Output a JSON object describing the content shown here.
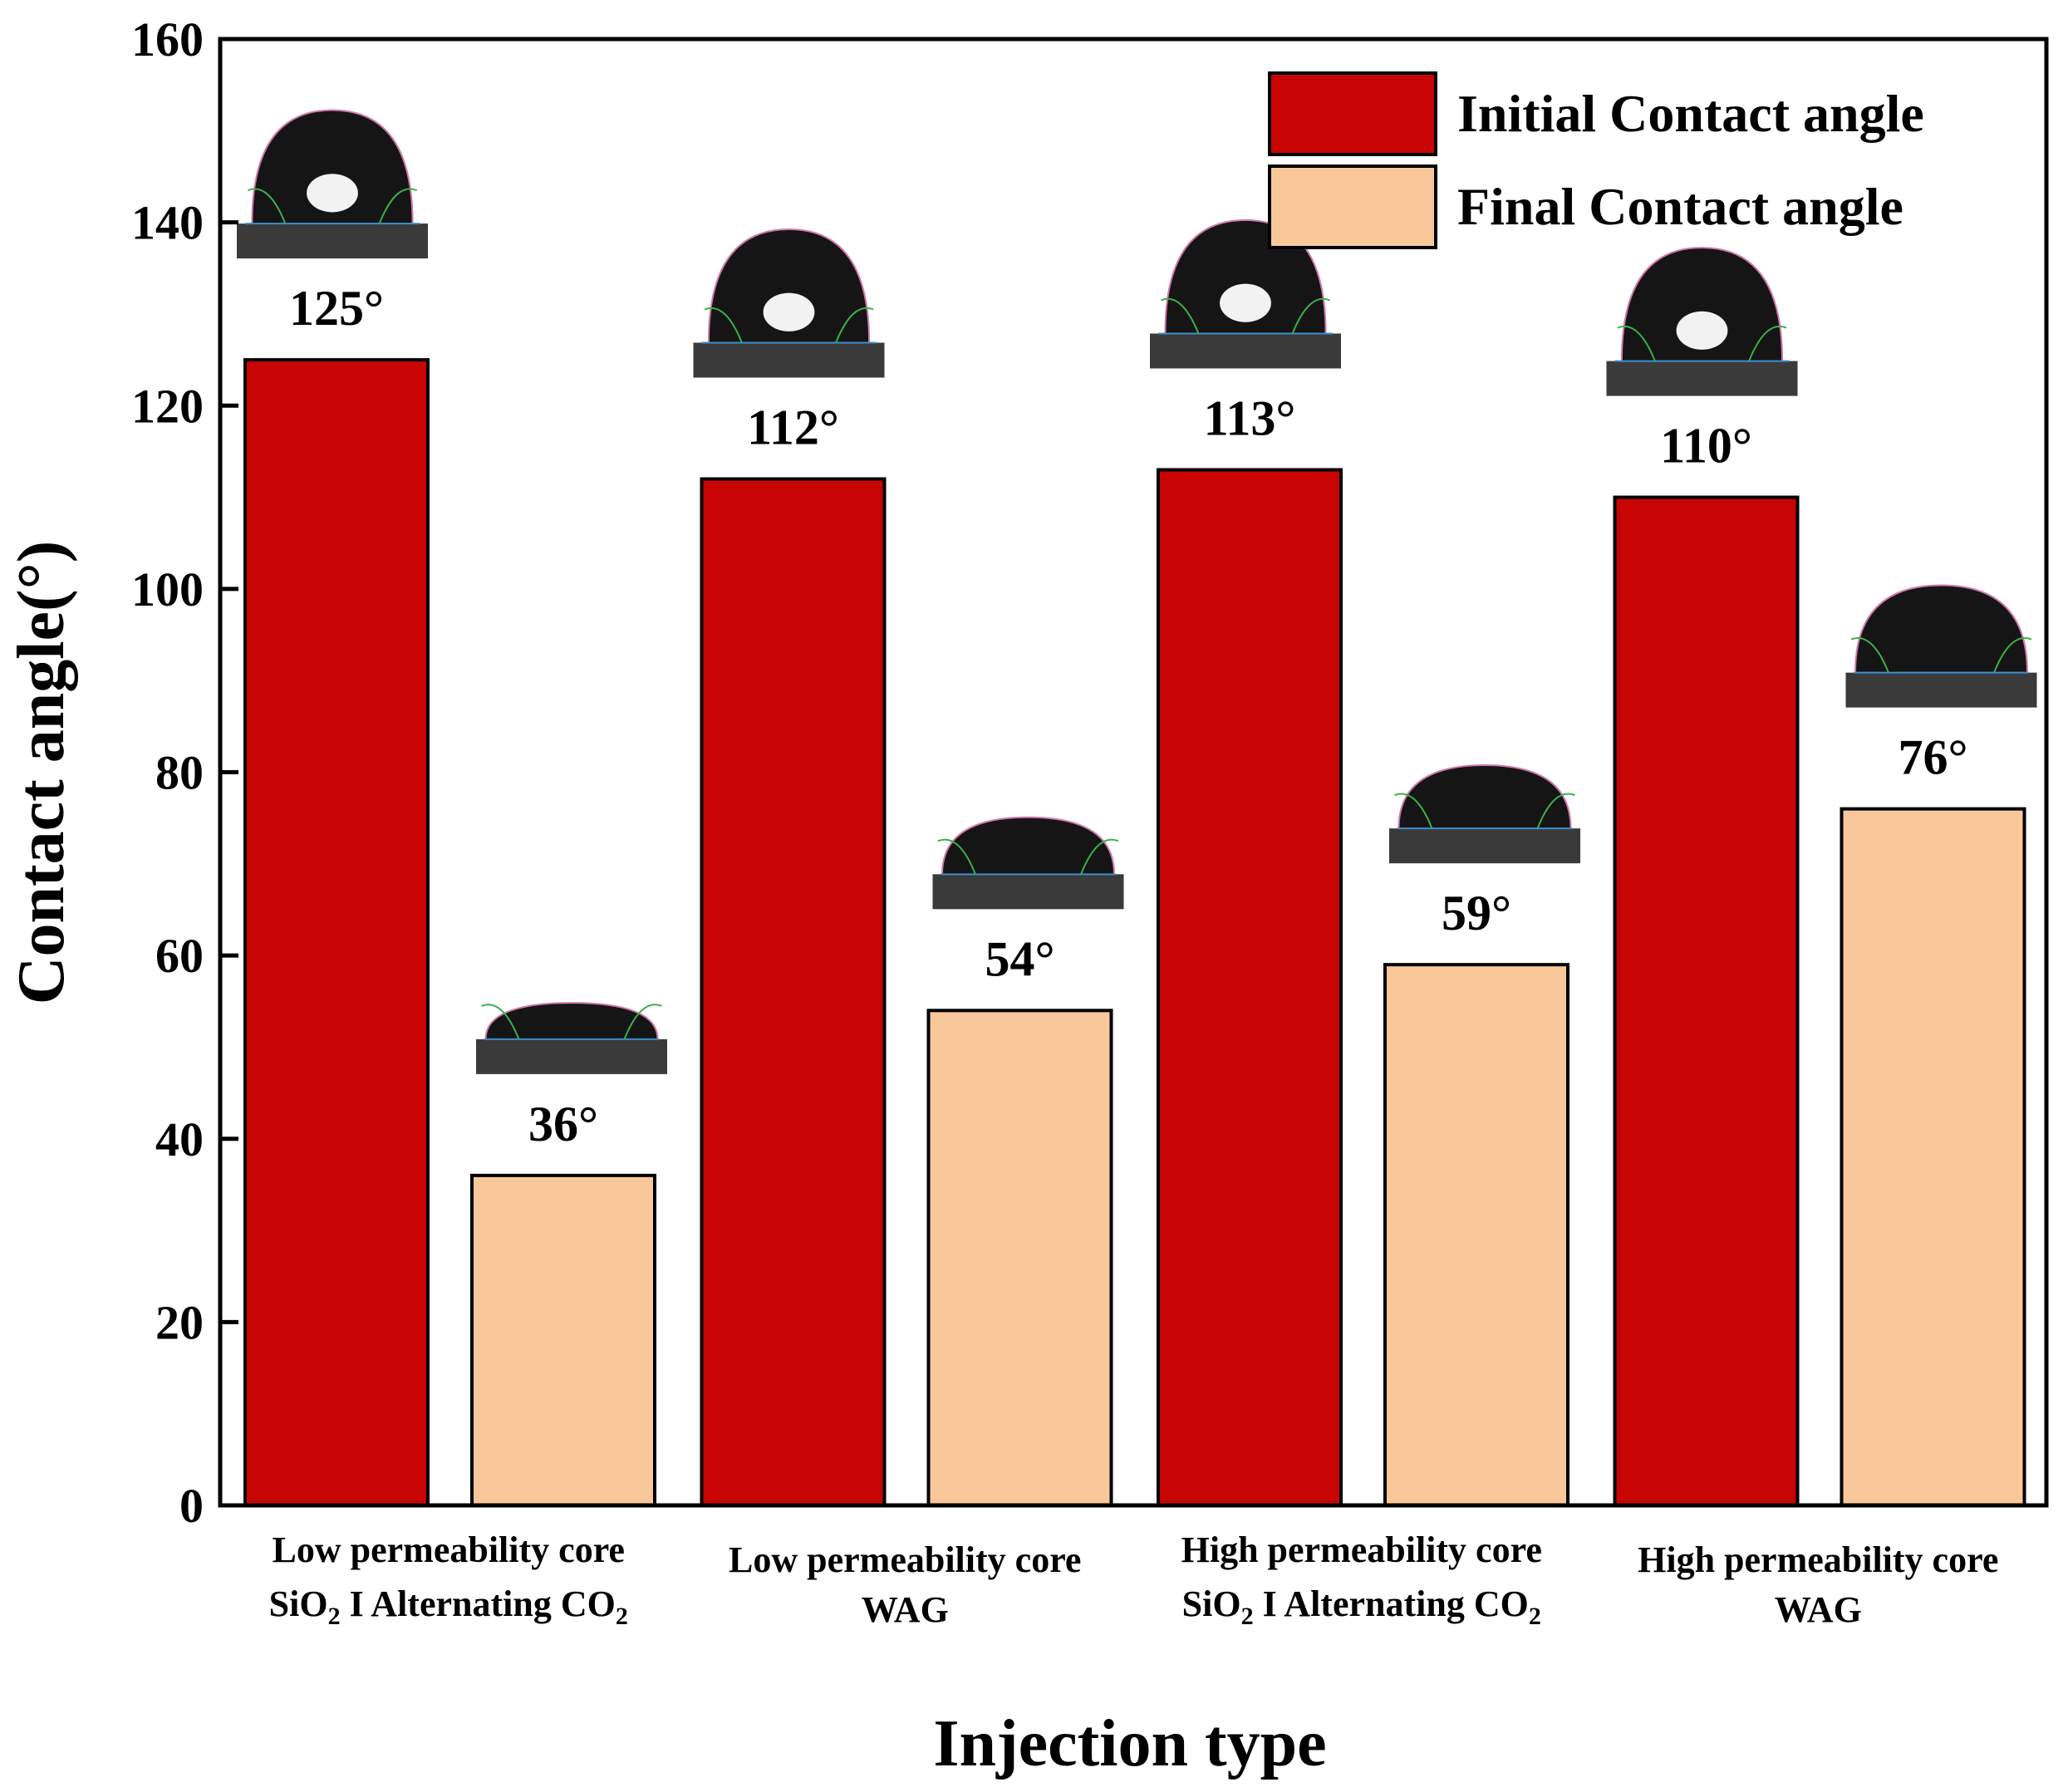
{
  "chart_data": {
    "type": "bar",
    "title": "",
    "xlabel": "Injection type",
    "ylabel": "Contact angle(°)",
    "ylim": [
      0,
      160
    ],
    "yticks": [
      0,
      20,
      40,
      60,
      80,
      100,
      120,
      140,
      160
    ],
    "grid": false,
    "legend_position": "top-right",
    "categories": [
      {
        "line1": "Low permeability  core",
        "line2": "SiO",
        "sub": "2",
        "line2b": " I Alternating  CO",
        "sub2": "2"
      },
      {
        "line1": "Low permeability  core",
        "line2": "WAG",
        "sub": "",
        "line2b": "",
        "sub2": ""
      },
      {
        "line1": "High permeability  core",
        "line2": "SiO",
        "sub": "2",
        "line2b": " I Alternating  CO",
        "sub2": "2"
      },
      {
        "line1": "High permeability  core",
        "line2": "WAG",
        "sub": "",
        "line2b": "",
        "sub2": ""
      }
    ],
    "series": [
      {
        "name": "Initial Contact angle",
        "color": "#C80404",
        "values": [
          125,
          112,
          113,
          110
        ],
        "labels": [
          "125°",
          "112°",
          "113°",
          "110°"
        ]
      },
      {
        "name": "Final Contact angle",
        "color": "#F9C89A",
        "values": [
          36,
          54,
          59,
          76
        ],
        "labels": [
          "36°",
          "54°",
          "59°",
          "76°"
        ]
      }
    ]
  }
}
